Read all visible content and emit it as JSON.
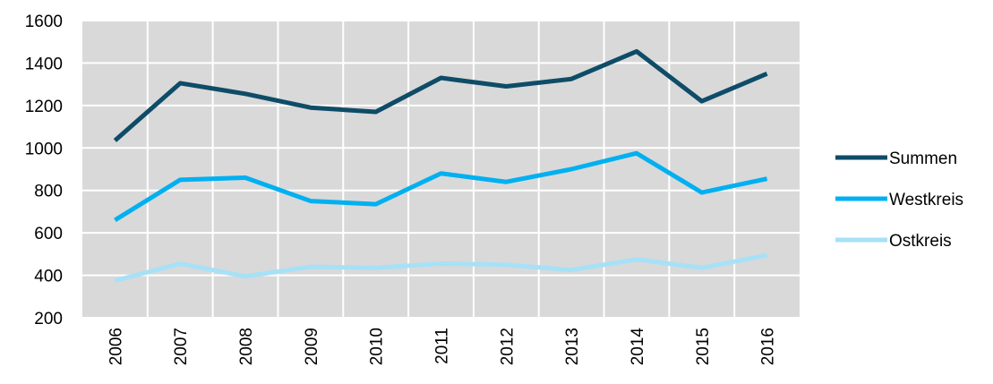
{
  "chart_data": {
    "type": "line",
    "categories": [
      "2006",
      "2007",
      "2008",
      "2009",
      "2010",
      "2011",
      "2012",
      "2013",
      "2014",
      "2015",
      "2016"
    ],
    "series": [
      {
        "name": "Summen",
        "color": "#0e4c68",
        "values": [
          1035,
          1305,
          1255,
          1190,
          1170,
          1330,
          1290,
          1325,
          1455,
          1220,
          1350
        ]
      },
      {
        "name": "Westkreis",
        "color": "#00b0f0",
        "values": [
          660,
          850,
          860,
          750,
          735,
          880,
          840,
          900,
          975,
          790,
          855
        ]
      },
      {
        "name": "Ostkreis",
        "color": "#a6e1f7",
        "values": [
          375,
          455,
          395,
          440,
          435,
          455,
          450,
          425,
          475,
          435,
          495
        ]
      }
    ],
    "ylim": [
      200,
      1600
    ],
    "yticks": [
      200,
      400,
      600,
      800,
      1000,
      1200,
      1400,
      1600
    ],
    "grid": true,
    "legend": "right"
  }
}
